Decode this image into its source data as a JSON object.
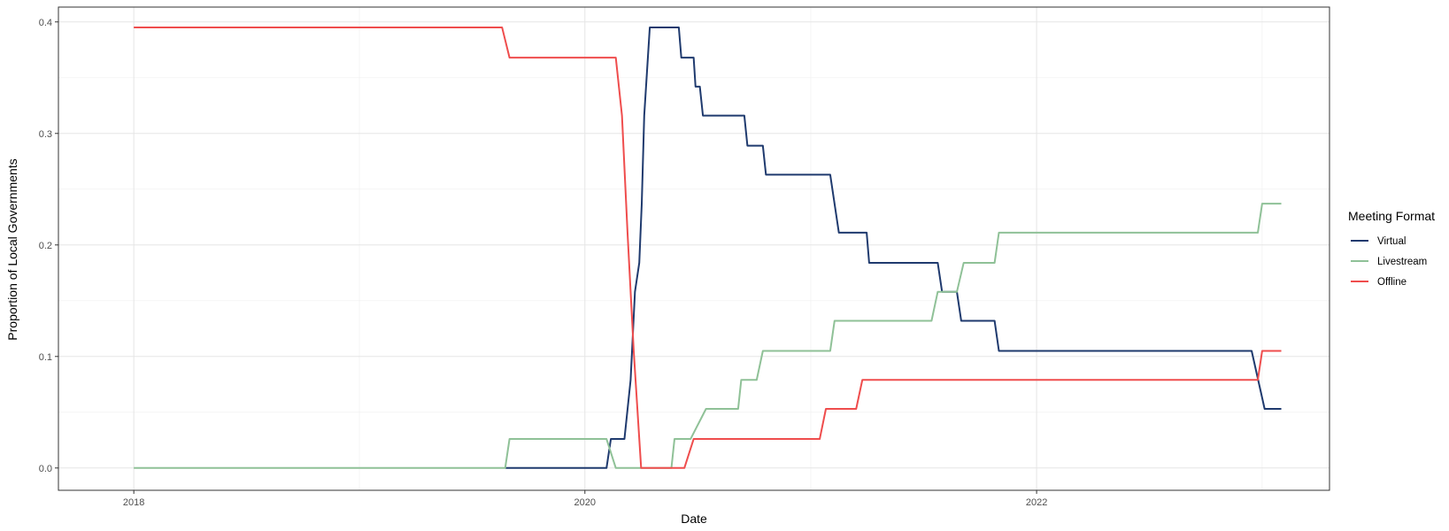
{
  "chart_data": {
    "type": "line",
    "title": "",
    "xlabel": "Date",
    "ylabel": "Proportion of Local Governments",
    "x_type": "date",
    "xlim": [
      "2017-09-01",
      "2023-04-20"
    ],
    "ylim": [
      -0.02,
      0.4133
    ],
    "x_ticks": [
      {
        "value": "2018-01-01",
        "label": "2018"
      },
      {
        "value": "2020-01-01",
        "label": "2020"
      },
      {
        "value": "2022-01-01",
        "label": "2022"
      }
    ],
    "y_ticks": [
      {
        "value": 0.0,
        "label": "0.0"
      },
      {
        "value": 0.1,
        "label": "0.1"
      },
      {
        "value": 0.2,
        "label": "0.2"
      },
      {
        "value": 0.3,
        "label": "0.3"
      },
      {
        "value": 0.4,
        "label": "0.4"
      }
    ],
    "grid": true,
    "legend": {
      "title": "Meeting Format",
      "position": "right"
    },
    "series": [
      {
        "name": "Virtual",
        "color": "#1f3a6e",
        "points": [
          [
            "2019-08-25",
            0.0
          ],
          [
            "2020-02-05",
            0.0
          ],
          [
            "2020-02-12",
            0.026
          ],
          [
            "2020-03-05",
            0.026
          ],
          [
            "2020-03-15",
            0.079
          ],
          [
            "2020-03-22",
            0.158
          ],
          [
            "2020-03-29",
            0.184
          ],
          [
            "2020-04-02",
            0.237
          ],
          [
            "2020-04-06",
            0.316
          ],
          [
            "2020-04-15",
            0.395
          ],
          [
            "2020-05-01",
            0.395
          ],
          [
            "2020-06-01",
            0.395
          ],
          [
            "2020-06-05",
            0.368
          ],
          [
            "2020-06-25",
            0.368
          ],
          [
            "2020-06-28",
            0.342
          ],
          [
            "2020-07-05",
            0.342
          ],
          [
            "2020-07-10",
            0.316
          ],
          [
            "2020-09-15",
            0.316
          ],
          [
            "2020-09-20",
            0.289
          ],
          [
            "2020-10-15",
            0.289
          ],
          [
            "2020-10-20",
            0.263
          ],
          [
            "2021-02-01",
            0.263
          ],
          [
            "2021-02-15",
            0.211
          ],
          [
            "2021-04-01",
            0.211
          ],
          [
            "2021-04-05",
            0.184
          ],
          [
            "2021-07-25",
            0.184
          ],
          [
            "2021-08-01",
            0.158
          ],
          [
            "2021-08-25",
            0.158
          ],
          [
            "2021-09-01",
            0.132
          ],
          [
            "2021-10-25",
            0.132
          ],
          [
            "2021-11-01",
            0.105
          ],
          [
            "2022-12-15",
            0.105
          ],
          [
            "2023-01-05",
            0.053
          ],
          [
            "2023-02-01",
            0.053
          ]
        ]
      },
      {
        "name": "Livestream",
        "color": "#8fc197",
        "points": [
          [
            "2018-01-01",
            0.0
          ],
          [
            "2019-08-25",
            0.0
          ],
          [
            "2019-09-01",
            0.026
          ],
          [
            "2020-02-05",
            0.026
          ],
          [
            "2020-02-20",
            0.0
          ],
          [
            "2020-05-20",
            0.0
          ],
          [
            "2020-05-25",
            0.026
          ],
          [
            "2020-06-20",
            0.026
          ],
          [
            "2020-07-15",
            0.053
          ],
          [
            "2020-09-05",
            0.053
          ],
          [
            "2020-09-10",
            0.079
          ],
          [
            "2020-10-05",
            0.079
          ],
          [
            "2020-10-15",
            0.105
          ],
          [
            "2021-02-01",
            0.105
          ],
          [
            "2021-02-08",
            0.132
          ],
          [
            "2021-07-15",
            0.132
          ],
          [
            "2021-07-25",
            0.158
          ],
          [
            "2021-08-25",
            0.158
          ],
          [
            "2021-09-05",
            0.184
          ],
          [
            "2021-10-25",
            0.184
          ],
          [
            "2021-11-01",
            0.211
          ],
          [
            "2022-12-25",
            0.211
          ],
          [
            "2023-01-01",
            0.237
          ],
          [
            "2023-02-01",
            0.237
          ]
        ]
      },
      {
        "name": "Offline",
        "color": "#ef4d4d",
        "points": [
          [
            "2018-01-01",
            0.395
          ],
          [
            "2019-08-20",
            0.395
          ],
          [
            "2019-09-01",
            0.368
          ],
          [
            "2020-02-20",
            0.368
          ],
          [
            "2020-03-01",
            0.316
          ],
          [
            "2020-03-10",
            0.211
          ],
          [
            "2020-03-20",
            0.105
          ],
          [
            "2020-04-01",
            0.0
          ],
          [
            "2020-06-10",
            0.0
          ],
          [
            "2020-06-25",
            0.026
          ],
          [
            "2021-01-15",
            0.026
          ],
          [
            "2021-01-25",
            0.053
          ],
          [
            "2021-03-15",
            0.053
          ],
          [
            "2021-03-25",
            0.079
          ],
          [
            "2022-12-25",
            0.079
          ],
          [
            "2023-01-01",
            0.105
          ],
          [
            "2023-02-01",
            0.105
          ]
        ]
      }
    ]
  }
}
